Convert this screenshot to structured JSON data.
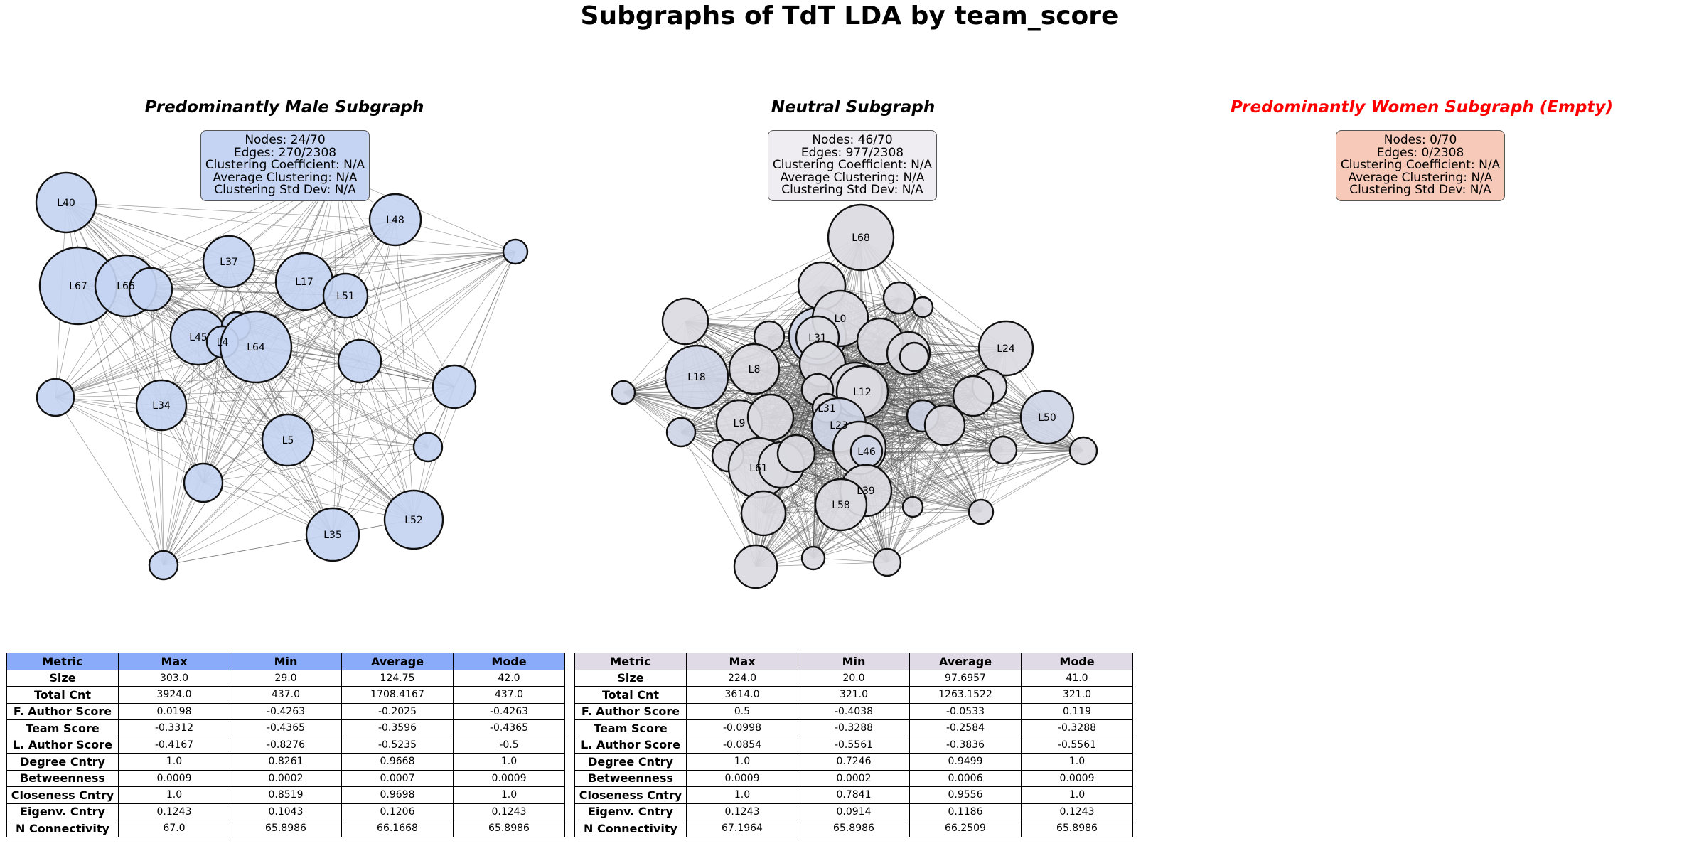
{
  "title": "Subgraphs of TdT LDA by team_score",
  "colors": {
    "male_node": "#c4d4f2",
    "male_header": "#8aabfa",
    "neutral_node": "#dadae1",
    "neutral_header": "#e0dae6",
    "women_box": "#f7c9b8",
    "women_title": "#ff0000",
    "edge": "#555555"
  },
  "panels": [
    {
      "title": "Predominantly Male Subgraph",
      "info": [
        "Nodes: 24/70",
        "Edges: 270/2308",
        "Clustering Coefficient: N/A",
        "Average Clustering: N/A",
        "Clustering Std Dev: N/A"
      ],
      "node_labels": [
        "L40",
        "L48",
        "L37",
        "L67",
        "L66",
        "L17",
        "L51",
        "L45",
        "L4",
        "L64",
        "L34",
        "L5",
        "L35",
        "L52"
      ]
    },
    {
      "title": "Neutral Subgraph",
      "info": [
        "Nodes: 46/70",
        "Edges: 977/2308",
        "Clustering Coefficient: N/A",
        "Average Clustering: N/A",
        "Clustering Std Dev: N/A"
      ],
      "node_labels": [
        "L68",
        "L0",
        "L31",
        "L24",
        "L18",
        "L8",
        "L12",
        "L31",
        "L23",
        "L50",
        "L9",
        "L46",
        "L61",
        "L39",
        "L58"
      ]
    },
    {
      "title": "Predominantly Women Subgraph (Empty)",
      "info": [
        "Nodes: 0/70",
        "Edges: 0/2308",
        "Clustering Coefficient: N/A",
        "Average Clustering: N/A",
        "Clustering Std Dev: N/A"
      ]
    }
  ],
  "tables": [
    {
      "headers": [
        "Metric",
        "Max",
        "Min",
        "Average",
        "Mode"
      ],
      "rows": [
        [
          "Size",
          "303.0",
          "29.0",
          "124.75",
          "42.0"
        ],
        [
          "Total Cnt",
          "3924.0",
          "437.0",
          "1708.4167",
          "437.0"
        ],
        [
          "F. Author Score",
          "0.0198",
          "-0.4263",
          "-0.2025",
          "-0.4263"
        ],
        [
          "Team Score",
          "-0.3312",
          "-0.4365",
          "-0.3596",
          "-0.4365"
        ],
        [
          "L. Author Score",
          "-0.4167",
          "-0.8276",
          "-0.5235",
          "-0.5"
        ],
        [
          "Degree Cntry",
          "1.0",
          "0.8261",
          "0.9668",
          "1.0"
        ],
        [
          "Betweenness",
          "0.0009",
          "0.0002",
          "0.0007",
          "0.0009"
        ],
        [
          "Closeness Cntry",
          "1.0",
          "0.8519",
          "0.9698",
          "1.0"
        ],
        [
          "Eigenv. Cntry",
          "0.1243",
          "0.1043",
          "0.1206",
          "0.1243"
        ],
        [
          "N Connectivity",
          "67.0",
          "65.8986",
          "66.1668",
          "65.8986"
        ]
      ]
    },
    {
      "headers": [
        "Metric",
        "Max",
        "Min",
        "Average",
        "Mode"
      ],
      "rows": [
        [
          "Size",
          "224.0",
          "20.0",
          "97.6957",
          "41.0"
        ],
        [
          "Total Cnt",
          "3614.0",
          "321.0",
          "1263.1522",
          "321.0"
        ],
        [
          "F. Author Score",
          "0.5",
          "-0.4038",
          "-0.0533",
          "0.119"
        ],
        [
          "Team Score",
          "-0.0998",
          "-0.3288",
          "-0.2584",
          "-0.3288"
        ],
        [
          "L. Author Score",
          "-0.0854",
          "-0.5561",
          "-0.3836",
          "-0.5561"
        ],
        [
          "Degree Cntry",
          "1.0",
          "0.7246",
          "0.9499",
          "1.0"
        ],
        [
          "Betweenness",
          "0.0009",
          "0.0002",
          "0.0006",
          "0.0009"
        ],
        [
          "Closeness Cntry",
          "1.0",
          "0.7841",
          "0.9556",
          "1.0"
        ],
        [
          "Eigenv. Cntry",
          "0.1243",
          "0.0914",
          "0.1186",
          "0.1243"
        ],
        [
          "N Connectivity",
          "67.1964",
          "65.8986",
          "66.2509",
          "65.8986"
        ]
      ]
    }
  ]
}
